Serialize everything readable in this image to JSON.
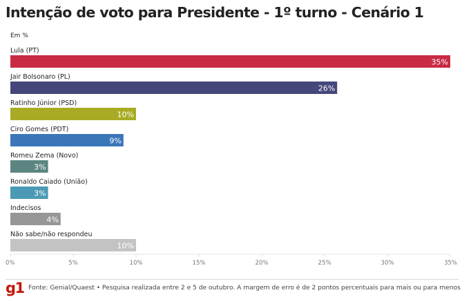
{
  "header": {
    "title": "Intenção de voto para Presidente - 1º turno - Cenário 1",
    "unit": "Em %"
  },
  "chart_data": {
    "type": "bar",
    "orientation": "horizontal",
    "title": "Intenção de voto para Presidente - 1º turno - Cenário 1",
    "subtitle": "Em %",
    "xlabel": "",
    "ylabel": "",
    "xlim": [
      0,
      35
    ],
    "grid": false,
    "categories": [
      "Lula (PT)",
      "Jair Bolsonaro (PL)",
      "Ratinho Júnior (PSD)",
      "Ciro Gomes (PDT)",
      "Romeu Zema (Novo)",
      "Ronaldo Caiado (União)",
      "Indecisos",
      "Não sabe/não respondeu"
    ],
    "values": [
      35,
      26,
      10,
      9,
      3,
      3,
      4,
      10
    ],
    "value_labels": [
      "35%",
      "26%",
      "10%",
      "9%",
      "3%",
      "3%",
      "4%",
      "10%"
    ],
    "colors": [
      "#c92a44",
      "#45467a",
      "#a9ab24",
      "#3a76b8",
      "#5c8581",
      "#4b9ab5",
      "#969696",
      "#c3c3c3"
    ],
    "ticks": [
      0,
      5,
      10,
      15,
      20,
      25,
      30,
      35
    ],
    "tick_labels": [
      "0%",
      "5%",
      "10%",
      "15%",
      "20%",
      "25%",
      "30%",
      "35%"
    ]
  },
  "footer": {
    "logo": "g1",
    "source": "Fonte: Genial/Quaest • Pesquisa realizada entre 2 e 5 de outubro. A margem de erro é de 2 pontos percentuais para mais ou para menos"
  }
}
